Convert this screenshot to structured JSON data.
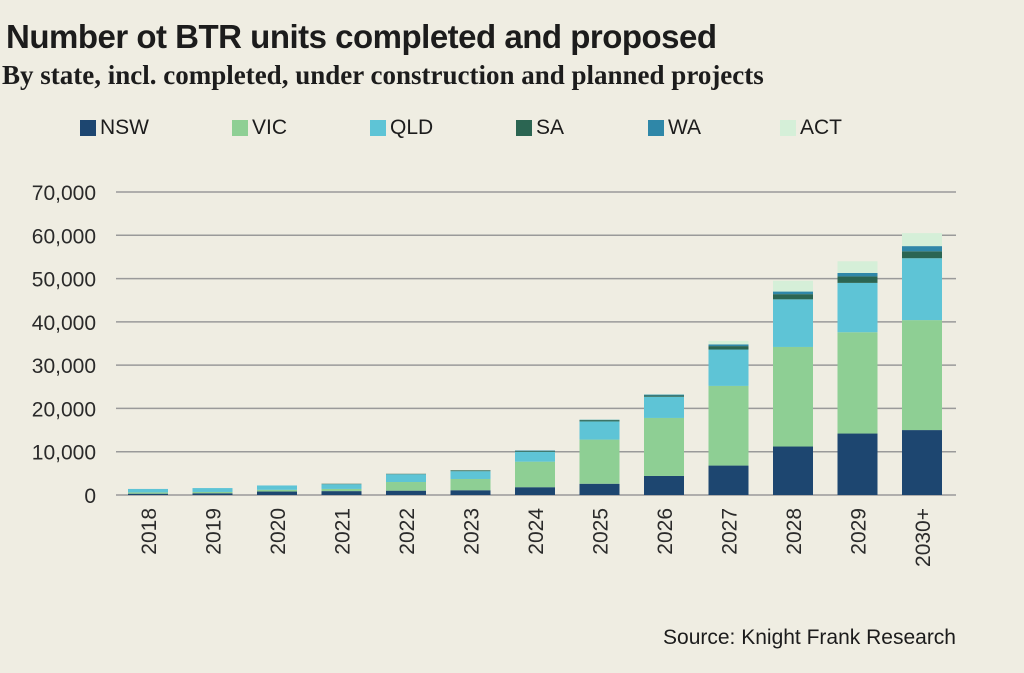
{
  "header": {
    "title": "Number ot BTR units completed and proposed",
    "subtitle": "By state, incl. completed, under construction and planned projects"
  },
  "footer": {
    "source": "Source: Knight Frank Research"
  },
  "colors": {
    "NSW": "#1d4670",
    "VIC": "#8ecf94",
    "QLD": "#5ec4d6",
    "SA": "#2b6552",
    "WA": "#2f87a8",
    "ACT": "#d5efd8",
    "grid": "#9a9a9a",
    "background": "#efede2"
  },
  "chart_data": {
    "type": "bar",
    "stacked": true,
    "title": "Number ot BTR units completed and proposed",
    "subtitle": "By state, incl. completed, under construction and planned projects",
    "xlabel": "",
    "ylabel": "",
    "ylim": [
      0,
      70000
    ],
    "yticks": [
      0,
      10000,
      20000,
      30000,
      40000,
      50000,
      60000,
      70000
    ],
    "ytick_labels": [
      "0",
      "10,000",
      "20,000",
      "30,000",
      "40,000",
      "50,000",
      "60,000",
      "70,000"
    ],
    "grid": true,
    "legend_position": "top",
    "categories": [
      "2018",
      "2019",
      "2020",
      "2021",
      "2022",
      "2023",
      "2024",
      "2025",
      "2026",
      "2027",
      "2028",
      "2029",
      "2030+"
    ],
    "series": [
      {
        "name": "NSW",
        "values": [
          300,
          400,
          800,
          900,
          1000,
          1100,
          1800,
          2600,
          4400,
          6800,
          11200,
          14200,
          15000
        ]
      },
      {
        "name": "VIC",
        "values": [
          300,
          300,
          400,
          500,
          2000,
          2600,
          5900,
          10200,
          13400,
          18400,
          23000,
          23400,
          25400
        ]
      },
      {
        "name": "QLD",
        "values": [
          800,
          900,
          1000,
          1100,
          1800,
          1800,
          2300,
          4200,
          4900,
          8400,
          11000,
          11400,
          14300
        ]
      },
      {
        "name": "SA",
        "values": [
          0,
          0,
          0,
          100,
          100,
          200,
          200,
          300,
          300,
          800,
          1200,
          1500,
          1600
        ]
      },
      {
        "name": "WA",
        "values": [
          0,
          0,
          0,
          0,
          0,
          0,
          100,
          100,
          200,
          400,
          600,
          800,
          1200
        ]
      },
      {
        "name": "ACT",
        "values": [
          0,
          0,
          0,
          0,
          0,
          0,
          0,
          100,
          100,
          800,
          2500,
          2700,
          3000
        ]
      }
    ]
  }
}
